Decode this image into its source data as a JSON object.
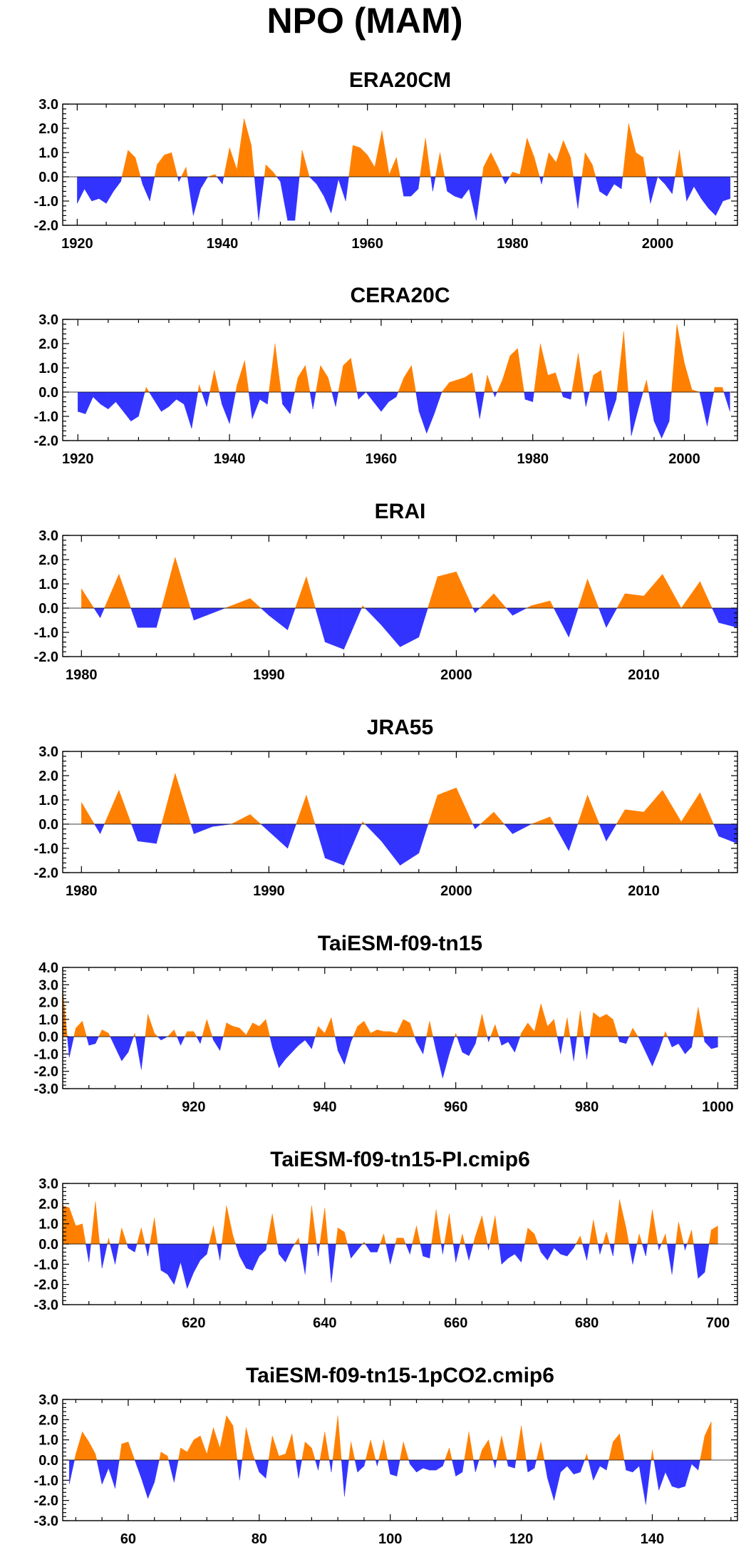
{
  "title": "NPO (MAM)",
  "colors": {
    "positive": "#ff8000",
    "negative": "#3333ff"
  },
  "chart_data": [
    {
      "type": "area",
      "title": "ERA20CM",
      "xlim": [
        1918,
        2011
      ],
      "ylim": [
        -2.0,
        3.0
      ],
      "x_ticks": [
        1920,
        1940,
        1960,
        1980,
        2000
      ],
      "y_ticks": [
        3.0,
        2.0,
        1.0,
        0.0,
        -1.0,
        -2.0
      ],
      "x_start": 1920,
      "values": [
        -1.1,
        -0.5,
        -1.0,
        -0.9,
        -1.1,
        -0.6,
        -0.2,
        1.1,
        0.8,
        -0.3,
        -1.0,
        0.5,
        0.9,
        1.0,
        -0.2,
        0.4,
        -1.6,
        -0.5,
        0.0,
        0.1,
        -0.3,
        1.2,
        0.3,
        2.4,
        1.3,
        -1.8,
        0.5,
        0.2,
        -0.2,
        -1.8,
        -1.8,
        1.1,
        0.0,
        -0.3,
        -0.8,
        -1.5,
        -0.1,
        -1.0,
        1.3,
        1.2,
        0.9,
        0.4,
        1.9,
        0.1,
        0.8,
        -0.8,
        -0.8,
        -0.5,
        1.6,
        -0.6,
        1.0,
        -0.6,
        -0.8,
        -0.9,
        -0.5,
        -1.8,
        0.4,
        1.0,
        0.4,
        -0.3,
        0.2,
        0.1,
        1.6,
        0.8,
        -0.3,
        1.0,
        0.6,
        1.5,
        0.8,
        -1.3,
        1.0,
        0.5,
        -0.6,
        -0.8,
        -0.3,
        -0.5,
        2.2,
        1.0,
        0.8,
        -1.1,
        0.0,
        -0.3,
        -0.7,
        1.1,
        -1.0,
        -0.4,
        -0.9,
        -1.3,
        -1.6,
        -1.0,
        -0.9
      ]
    },
    {
      "type": "area",
      "title": "CERA20C",
      "xlim": [
        1918,
        2007
      ],
      "ylim": [
        -2.0,
        3.0
      ],
      "x_ticks": [
        1920,
        1940,
        1960,
        1980,
        2000
      ],
      "y_ticks": [
        3.0,
        2.0,
        1.0,
        0.0,
        -1.0,
        -2.0
      ],
      "x_start": 1920,
      "values": [
        -0.8,
        -0.9,
        -0.2,
        -0.5,
        -0.7,
        -0.4,
        -0.8,
        -1.2,
        -1.0,
        0.2,
        -0.3,
        -0.8,
        -0.6,
        -0.3,
        -0.5,
        -1.5,
        0.3,
        -0.6,
        0.9,
        -0.5,
        -1.3,
        0.3,
        1.3,
        -1.1,
        -0.3,
        -0.5,
        2.0,
        -0.5,
        -0.9,
        0.6,
        1.1,
        -0.7,
        1.1,
        0.6,
        -0.6,
        1.1,
        1.4,
        -0.3,
        0.0,
        -0.4,
        -0.8,
        -0.4,
        -0.2,
        0.6,
        1.1,
        -0.8,
        -1.7,
        -0.9,
        0.0,
        0.4,
        0.5,
        0.6,
        0.8,
        -1.1,
        0.7,
        -0.2,
        0.5,
        1.5,
        1.8,
        -0.3,
        -0.4,
        2.0,
        0.7,
        0.8,
        -0.2,
        -0.3,
        1.6,
        -0.6,
        0.7,
        0.9,
        -1.2,
        -0.3,
        2.5,
        -1.8,
        -0.6,
        0.5,
        -1.2,
        -1.9,
        -1.2,
        2.8,
        1.2,
        0.1,
        0.0,
        -1.4,
        0.2,
        0.2,
        -0.8
      ]
    },
    {
      "type": "area",
      "title": "ERAI",
      "xlim": [
        1979,
        2015
      ],
      "ylim": [
        -2.0,
        3.0
      ],
      "x_ticks": [
        1980,
        1990,
        2000,
        2010
      ],
      "y_ticks": [
        3.0,
        2.0,
        1.0,
        0.0,
        -1.0,
        -2.0
      ],
      "x_start": 1980,
      "values": [
        0.8,
        -0.4,
        1.4,
        -0.8,
        -0.8,
        2.1,
        -0.5,
        -0.2,
        0.1,
        0.4,
        -0.3,
        -0.9,
        1.3,
        -1.4,
        -1.7,
        0.1,
        -0.7,
        -1.6,
        -1.2,
        1.3,
        1.5,
        -0.2,
        0.6,
        -0.3,
        0.1,
        0.3,
        -1.2,
        1.2,
        -0.8,
        0.6,
        0.5,
        1.4,
        0.0,
        1.1,
        -0.6,
        -0.8
      ]
    },
    {
      "type": "area",
      "title": "JRA55",
      "xlim": [
        1979,
        2015
      ],
      "ylim": [
        -2.0,
        3.0
      ],
      "x_ticks": [
        1980,
        1990,
        2000,
        2010
      ],
      "y_ticks": [
        3.0,
        2.0,
        1.0,
        0.0,
        -1.0,
        -2.0
      ],
      "x_start": 1980,
      "values": [
        0.9,
        -0.4,
        1.4,
        -0.7,
        -0.8,
        2.1,
        -0.4,
        -0.1,
        0.0,
        0.4,
        -0.3,
        -1.0,
        1.2,
        -1.4,
        -1.7,
        0.1,
        -0.7,
        -1.7,
        -1.2,
        1.2,
        1.5,
        -0.2,
        0.5,
        -0.4,
        0.0,
        0.3,
        -1.1,
        1.2,
        -0.7,
        0.6,
        0.5,
        1.4,
        0.1,
        1.3,
        -0.5,
        -0.8
      ]
    },
    {
      "type": "area",
      "title": "TaiESM-f09-tn15",
      "xlim": [
        900,
        1003
      ],
      "ylim": [
        -3.0,
        4.0
      ],
      "x_ticks": [
        920,
        940,
        960,
        980,
        1000
      ],
      "y_ticks": [
        4.0,
        3.0,
        2.0,
        1.0,
        0.0,
        -1.0,
        -2.0,
        -3.0
      ],
      "x_start": 900,
      "values": [
        2.8,
        -1.2,
        0.5,
        0.9,
        -0.5,
        -0.4,
        0.4,
        0.2,
        -0.6,
        -1.4,
        -0.9,
        0.2,
        -1.9,
        1.3,
        0.2,
        -0.2,
        0.0,
        0.4,
        -0.5,
        0.3,
        0.3,
        -0.4,
        1.0,
        -0.2,
        -0.8,
        0.8,
        0.6,
        0.5,
        0.1,
        0.8,
        0.6,
        1.0,
        -0.6,
        -1.8,
        -1.3,
        -0.9,
        -0.5,
        -0.2,
        -0.7,
        0.6,
        0.2,
        1.1,
        -0.8,
        -1.6,
        -0.3,
        0.6,
        0.9,
        0.2,
        0.4,
        0.3,
        0.3,
        0.2,
        1.0,
        0.8,
        -0.3,
        -1.0,
        0.9,
        -0.8,
        -2.4,
        -1.0,
        0.2,
        -0.9,
        -1.1,
        -0.4,
        1.3,
        -0.3,
        0.7,
        -0.5,
        -0.3,
        -0.9,
        0.2,
        0.8,
        0.3,
        1.9,
        0.6,
        1.0,
        -1.0,
        1.1,
        -1.4,
        1.5,
        -1.3,
        1.4,
        1.1,
        1.3,
        1.0,
        -0.3,
        -0.4,
        0.5,
        -0.1,
        -0.9,
        -1.7,
        -0.8,
        0.3,
        -0.6,
        -0.4,
        -1.0,
        -0.6,
        1.7,
        -0.3,
        -0.7,
        -0.6
      ]
    },
    {
      "type": "area",
      "title": "TaiESM-f09-tn15-PI.cmip6",
      "xlim": [
        600,
        703
      ],
      "ylim": [
        -3.0,
        3.0
      ],
      "x_ticks": [
        620,
        640,
        660,
        680,
        700
      ],
      "y_ticks": [
        3.0,
        2.0,
        1.0,
        0.0,
        -1.0,
        -2.0,
        -3.0
      ],
      "x_start": 600,
      "values": [
        1.9,
        1.8,
        0.9,
        1.0,
        -0.9,
        2.1,
        -1.2,
        0.3,
        -1.0,
        0.8,
        -0.2,
        -0.4,
        0.8,
        -0.6,
        1.3,
        -1.3,
        -1.5,
        -2.0,
        -0.9,
        -2.2,
        -1.4,
        -0.8,
        -0.5,
        0.9,
        -0.8,
        1.9,
        0.4,
        -0.6,
        -1.2,
        -1.3,
        -0.6,
        -0.3,
        1.5,
        -0.5,
        -0.9,
        -0.2,
        0.3,
        -1.5,
        1.9,
        -0.6,
        1.8,
        -1.9,
        0.8,
        0.6,
        -0.7,
        -0.3,
        0.1,
        -0.4,
        -0.4,
        0.5,
        -1.0,
        0.3,
        0.3,
        -0.5,
        0.9,
        -0.6,
        -0.7,
        1.7,
        -0.5,
        1.5,
        -0.9,
        0.5,
        -0.8,
        0.4,
        1.4,
        -0.3,
        1.4,
        -1.0,
        -0.7,
        -0.5,
        -0.9,
        0.8,
        0.5,
        -0.4,
        -0.8,
        -0.2,
        -0.5,
        -0.6,
        -0.2,
        0.4,
        -0.8,
        1.2,
        -0.5,
        0.6,
        -0.6,
        2.2,
        0.8,
        -1.0,
        0.5,
        -0.6,
        1.7,
        -0.3,
        0.5,
        -1.5,
        1.1,
        -0.3,
        0.7,
        -1.7,
        -1.4,
        0.7,
        0.9
      ]
    },
    {
      "type": "area",
      "title": "TaiESM-f09-tn15-1pCO2.cmip6",
      "xlim": [
        50,
        153
      ],
      "ylim": [
        -3.0,
        3.0
      ],
      "x_ticks": [
        60,
        80,
        100,
        120,
        140
      ],
      "y_ticks": [
        3.0,
        2.0,
        1.0,
        0.0,
        -1.0,
        -2.0,
        -3.0
      ],
      "x_start": 51,
      "values": [
        -1.2,
        0.3,
        1.4,
        0.9,
        0.3,
        -1.2,
        -0.4,
        -1.4,
        0.8,
        0.9,
        0.0,
        -0.9,
        -1.9,
        -1.1,
        0.4,
        0.2,
        -1.1,
        0.6,
        0.4,
        1.0,
        1.2,
        0.3,
        1.6,
        0.6,
        2.2,
        1.7,
        -1.0,
        1.6,
        0.3,
        -0.6,
        -0.9,
        1.2,
        0.2,
        0.3,
        1.3,
        -0.9,
        0.9,
        0.6,
        -0.5,
        1.4,
        -0.6,
        2.2,
        -1.8,
        0.9,
        -0.6,
        -0.3,
        1.0,
        -0.3,
        1.0,
        -0.7,
        -0.8,
        0.9,
        -0.2,
        -0.6,
        -0.4,
        -0.5,
        -0.5,
        -0.3,
        0.6,
        -0.8,
        -0.6,
        1.4,
        -0.6,
        0.5,
        1.0,
        -0.4,
        1.2,
        -0.3,
        -0.4,
        1.7,
        -0.6,
        -0.4,
        0.9,
        -0.9,
        -2.0,
        -0.6,
        -0.3,
        -0.7,
        -0.6,
        0.3,
        -1.0,
        -0.3,
        -0.5,
        0.9,
        1.3,
        -0.5,
        -0.6,
        -0.3,
        -2.2,
        0.5,
        -1.5,
        -0.6,
        -1.3,
        -1.4,
        -1.3,
        -0.2,
        -0.5,
        1.2,
        1.9
      ]
    }
  ]
}
